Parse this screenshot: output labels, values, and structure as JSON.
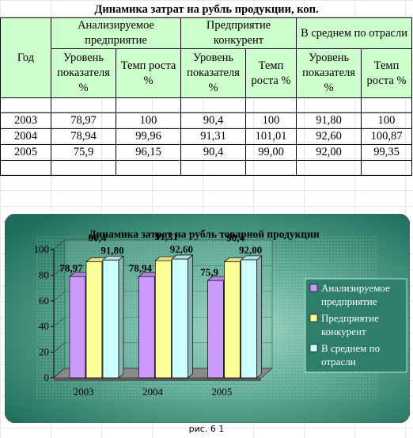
{
  "table": {
    "title": "Динамика затрат на рубль продукции, коп.",
    "col_year": "Год",
    "groups": [
      "Анализируемое предприятие",
      "Предприятие конкурент",
      "В среднем по отрасли"
    ],
    "subheaders": [
      "Уровень показателя %",
      "Темп роста %"
    ],
    "rows": [
      {
        "year": "2003",
        "values": [
          "78,97",
          "100",
          "90,4",
          "100",
          "91,80",
          "100"
        ]
      },
      {
        "year": "2004",
        "values": [
          "78,94",
          "99,96",
          "91,31",
          "101,01",
          "92,60",
          "100,87"
        ]
      },
      {
        "year": "2005",
        "values": [
          "75,9",
          "96,15",
          "90,4",
          "99,00",
          "92,00",
          "99,35"
        ]
      }
    ]
  },
  "chart_data": {
    "type": "bar",
    "title": "Динамика затрат на рубль товарной продукции",
    "categories": [
      "2003",
      "2004",
      "2005"
    ],
    "ylim": [
      0,
      100
    ],
    "yticks": [
      0,
      20,
      40,
      60,
      80,
      100
    ],
    "series": [
      {
        "name": "Анализируемое предприятие",
        "values": [
          78.97,
          78.94,
          75.9
        ],
        "labels": [
          "78,97",
          "78,94",
          "75,9"
        ],
        "color": "#cc99ff"
      },
      {
        "name": "Предприятие конкурент",
        "values": [
          90.4,
          91.31,
          90.4
        ],
        "labels": [
          "90,4",
          "91,31",
          "90,4"
        ],
        "color": "#ffff99"
      },
      {
        "name": "В среднем по отрасли",
        "values": [
          91.8,
          92.6,
          92.0
        ],
        "labels": [
          "91,80",
          "92,60",
          "92,00"
        ],
        "color": "#ccffff"
      }
    ],
    "legend_position": "right",
    "background": "#2e8b77"
  },
  "caption": "рис. 6 1"
}
